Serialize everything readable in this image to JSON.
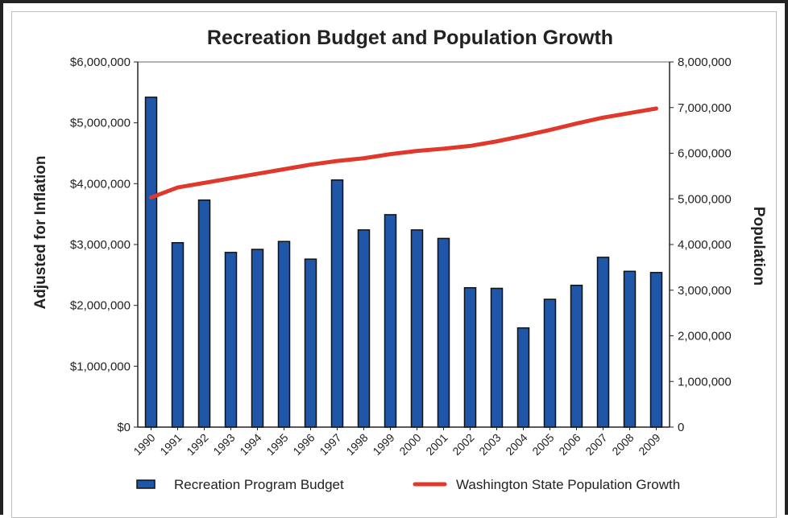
{
  "chart_data": {
    "type": "bar+line",
    "title": "Recreation Budget and Population Growth",
    "ylabel_left": "Adjusted for Inflation",
    "ylabel_right": "Population",
    "categories": [
      "1990",
      "1991",
      "1992",
      "1993",
      "1994",
      "1995",
      "1996",
      "1997",
      "1998",
      "1999",
      "2000",
      "2001",
      "2002",
      "2003",
      "2004",
      "2005",
      "2006",
      "2007",
      "2008",
      "2009"
    ],
    "y_left": {
      "range": [
        0,
        6000000
      ],
      "ticks": [
        0,
        1000000,
        2000000,
        3000000,
        4000000,
        5000000,
        6000000
      ],
      "tick_labels": [
        "$0",
        "$1,000,000",
        "$2,000,000",
        "$3,000,000",
        "$4,000,000",
        "$5,000,000",
        "$6,000,000"
      ]
    },
    "y_right": {
      "range": [
        0,
        8000000
      ],
      "ticks": [
        0,
        1000000,
        2000000,
        3000000,
        4000000,
        5000000,
        6000000,
        7000000,
        8000000
      ],
      "tick_labels": [
        "0",
        "1,000,000",
        "2,000,000",
        "3,000,000",
        "4,000,000",
        "5,000,000",
        "6,000,000",
        "7,000,000",
        "8,000,000"
      ]
    },
    "series": [
      {
        "name": "Recreation Program Budget",
        "kind": "bar",
        "axis": "left",
        "color": "#1f56a8",
        "values": [
          5420000,
          3030000,
          3730000,
          2870000,
          2920000,
          3050000,
          2760000,
          4060000,
          3240000,
          3490000,
          3240000,
          3100000,
          2290000,
          2280000,
          1630000,
          2100000,
          2330000,
          2790000,
          2560000,
          2540000
        ]
      },
      {
        "name": "Washington State Population Growth",
        "kind": "line",
        "axis": "right",
        "color": "#e0382b",
        "values": [
          5030000,
          5250000,
          5350000,
          5450000,
          5550000,
          5650000,
          5750000,
          5830000,
          5890000,
          5980000,
          6050000,
          6100000,
          6160000,
          6260000,
          6380000,
          6510000,
          6650000,
          6780000,
          6880000,
          6980000
        ]
      }
    ],
    "legend_position": "bottom",
    "grid": false
  }
}
